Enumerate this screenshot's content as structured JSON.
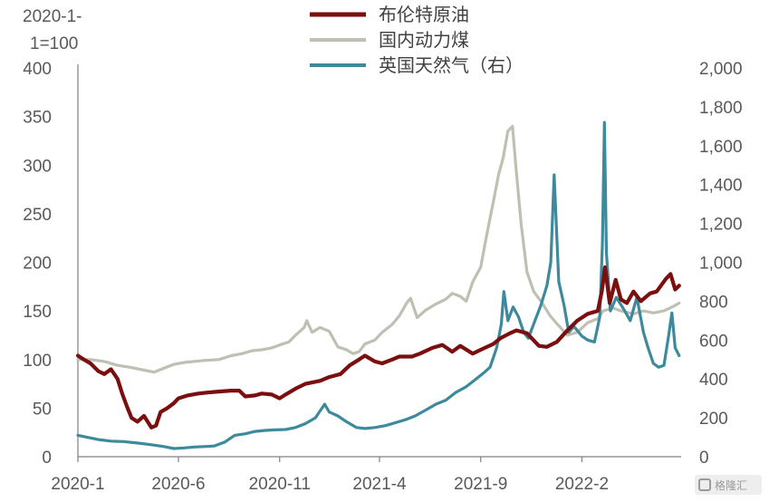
{
  "chart_data": {
    "type": "line",
    "ylabel": "2020-1-1=100",
    "ylabel_lines": [
      "2020-1-",
      "1=100"
    ],
    "x_start": "2020-01",
    "x_end": "2022-07",
    "x_tick_labels": [
      "2020-1",
      "2020-6",
      "2020-11",
      "2021-4",
      "2021-9",
      "2022-2"
    ],
    "x_ticks": [
      "2020-01",
      "2020-06",
      "2020-11",
      "2021-04",
      "2021-09",
      "2022-02"
    ],
    "ylim_left": [
      0,
      400
    ],
    "ylim_right": [
      0,
      2000
    ],
    "y_ticks_left": [
      "0",
      "50",
      "100",
      "150",
      "200",
      "250",
      "300",
      "350",
      "400"
    ],
    "y_ticks_right": [
      "0",
      "200",
      "400",
      "600",
      "800",
      "1,000",
      "1,200",
      "1,400",
      "1,600",
      "1,800",
      "2,000"
    ],
    "grid": false,
    "legend_position": "top-center",
    "series": [
      {
        "name": "布伦特原油",
        "axis": "left",
        "color": "#7B0F0F",
        "points": [
          [
            "2020-01-01",
            104
          ],
          [
            "2020-01-10",
            100
          ],
          [
            "2020-01-20",
            96
          ],
          [
            "2020-02-01",
            88
          ],
          [
            "2020-02-10",
            85
          ],
          [
            "2020-02-20",
            90
          ],
          [
            "2020-03-01",
            80
          ],
          [
            "2020-03-08",
            65
          ],
          [
            "2020-03-15",
            52
          ],
          [
            "2020-03-22",
            40
          ],
          [
            "2020-03-31",
            36
          ],
          [
            "2020-04-10",
            42
          ],
          [
            "2020-04-21",
            30
          ],
          [
            "2020-04-28",
            32
          ],
          [
            "2020-05-05",
            46
          ],
          [
            "2020-05-15",
            50
          ],
          [
            "2020-05-25",
            55
          ],
          [
            "2020-06-01",
            60
          ],
          [
            "2020-06-15",
            63
          ],
          [
            "2020-07-01",
            65
          ],
          [
            "2020-07-15",
            66
          ],
          [
            "2020-08-01",
            67
          ],
          [
            "2020-08-20",
            68
          ],
          [
            "2020-09-01",
            68
          ],
          [
            "2020-09-10",
            62
          ],
          [
            "2020-09-25",
            63
          ],
          [
            "2020-10-05",
            65
          ],
          [
            "2020-10-20",
            64
          ],
          [
            "2020-11-01",
            60
          ],
          [
            "2020-11-10",
            64
          ],
          [
            "2020-11-25",
            70
          ],
          [
            "2020-12-10",
            75
          ],
          [
            "2021-01-01",
            78
          ],
          [
            "2021-01-15",
            82
          ],
          [
            "2021-02-01",
            85
          ],
          [
            "2021-02-15",
            94
          ],
          [
            "2021-03-01",
            100
          ],
          [
            "2021-03-10",
            104
          ],
          [
            "2021-03-25",
            98
          ],
          [
            "2021-04-05",
            96
          ],
          [
            "2021-04-20",
            100
          ],
          [
            "2021-05-01",
            103
          ],
          [
            "2021-05-20",
            103
          ],
          [
            "2021-06-01",
            106
          ],
          [
            "2021-06-20",
            112
          ],
          [
            "2021-07-05",
            115
          ],
          [
            "2021-07-20",
            108
          ],
          [
            "2021-08-01",
            114
          ],
          [
            "2021-08-20",
            106
          ],
          [
            "2021-09-01",
            110
          ],
          [
            "2021-09-20",
            116
          ],
          [
            "2021-10-01",
            122
          ],
          [
            "2021-10-15",
            127
          ],
          [
            "2021-10-25",
            130
          ],
          [
            "2021-11-10",
            127
          ],
          [
            "2021-11-28",
            114
          ],
          [
            "2021-12-10",
            113
          ],
          [
            "2021-12-25",
            118
          ],
          [
            "2022-01-10",
            130
          ],
          [
            "2022-01-25",
            140
          ],
          [
            "2022-02-10",
            147
          ],
          [
            "2022-02-25",
            150
          ],
          [
            "2022-03-03",
            170
          ],
          [
            "2022-03-08",
            195
          ],
          [
            "2022-03-15",
            158
          ],
          [
            "2022-03-24",
            182
          ],
          [
            "2022-04-01",
            162
          ],
          [
            "2022-04-10",
            158
          ],
          [
            "2022-04-20",
            170
          ],
          [
            "2022-05-01",
            160
          ],
          [
            "2022-05-15",
            168
          ],
          [
            "2022-05-25",
            170
          ],
          [
            "2022-06-08",
            183
          ],
          [
            "2022-06-15",
            188
          ],
          [
            "2022-06-22",
            172
          ],
          [
            "2022-06-28",
            176
          ]
        ]
      },
      {
        "name": "国内动力煤",
        "axis": "left",
        "color": "#BFBFB2",
        "points": [
          [
            "2020-01-01",
            100
          ],
          [
            "2020-01-20",
            100
          ],
          [
            "2020-02-10",
            98
          ],
          [
            "2020-03-01",
            94
          ],
          [
            "2020-03-20",
            92
          ],
          [
            "2020-04-10",
            89
          ],
          [
            "2020-04-25",
            87
          ],
          [
            "2020-05-10",
            91
          ],
          [
            "2020-05-25",
            95
          ],
          [
            "2020-06-10",
            97
          ],
          [
            "2020-06-25",
            98
          ],
          [
            "2020-07-10",
            99
          ],
          [
            "2020-08-01",
            100
          ],
          [
            "2020-08-20",
            104
          ],
          [
            "2020-09-05",
            106
          ],
          [
            "2020-09-20",
            109
          ],
          [
            "2020-10-05",
            110
          ],
          [
            "2020-10-20",
            112
          ],
          [
            "2020-11-01",
            115
          ],
          [
            "2020-11-15",
            118
          ],
          [
            "2020-11-25",
            125
          ],
          [
            "2020-12-08",
            133
          ],
          [
            "2020-12-12",
            140
          ],
          [
            "2020-12-20",
            128
          ],
          [
            "2021-01-01",
            133
          ],
          [
            "2021-01-15",
            129
          ],
          [
            "2021-01-28",
            113
          ],
          [
            "2021-02-10",
            110
          ],
          [
            "2021-02-20",
            106
          ],
          [
            "2021-03-01",
            108
          ],
          [
            "2021-03-10",
            116
          ],
          [
            "2021-03-25",
            120
          ],
          [
            "2021-04-05",
            128
          ],
          [
            "2021-04-20",
            136
          ],
          [
            "2021-05-01",
            145
          ],
          [
            "2021-05-12",
            158
          ],
          [
            "2021-05-18",
            163
          ],
          [
            "2021-05-28",
            143
          ],
          [
            "2021-06-10",
            151
          ],
          [
            "2021-06-25",
            157
          ],
          [
            "2021-07-10",
            162
          ],
          [
            "2021-07-20",
            168
          ],
          [
            "2021-08-01",
            165
          ],
          [
            "2021-08-10",
            160
          ],
          [
            "2021-08-20",
            180
          ],
          [
            "2021-09-01",
            195
          ],
          [
            "2021-09-10",
            228
          ],
          [
            "2021-09-20",
            262
          ],
          [
            "2021-09-28",
            290
          ],
          [
            "2021-10-05",
            308
          ],
          [
            "2021-10-12",
            335
          ],
          [
            "2021-10-19",
            340
          ],
          [
            "2021-10-24",
            300
          ],
          [
            "2021-11-01",
            240
          ],
          [
            "2021-11-10",
            190
          ],
          [
            "2021-11-20",
            170
          ],
          [
            "2021-12-01",
            160
          ],
          [
            "2021-12-15",
            145
          ],
          [
            "2021-12-25",
            137
          ],
          [
            "2022-01-10",
            125
          ],
          [
            "2022-01-25",
            128
          ],
          [
            "2022-02-10",
            138
          ],
          [
            "2022-02-25",
            142
          ],
          [
            "2022-03-05",
            150
          ],
          [
            "2022-03-20",
            153
          ],
          [
            "2022-04-01",
            150
          ],
          [
            "2022-04-20",
            147
          ],
          [
            "2022-05-05",
            150
          ],
          [
            "2022-05-20",
            148
          ],
          [
            "2022-06-05",
            150
          ],
          [
            "2022-06-20",
            155
          ],
          [
            "2022-06-28",
            158
          ]
        ]
      },
      {
        "name": "英国天然气（右）",
        "axis": "right",
        "color": "#3C8A9C",
        "points": [
          [
            "2020-01-01",
            110
          ],
          [
            "2020-01-15",
            100
          ],
          [
            "2020-02-01",
            88
          ],
          [
            "2020-02-20",
            80
          ],
          [
            "2020-03-10",
            78
          ],
          [
            "2020-04-01",
            70
          ],
          [
            "2020-04-20",
            62
          ],
          [
            "2020-05-10",
            52
          ],
          [
            "2020-05-25",
            42
          ],
          [
            "2020-06-10",
            45
          ],
          [
            "2020-06-25",
            50
          ],
          [
            "2020-07-10",
            52
          ],
          [
            "2020-07-25",
            55
          ],
          [
            "2020-08-10",
            75
          ],
          [
            "2020-08-25",
            110
          ],
          [
            "2020-09-10",
            118
          ],
          [
            "2020-09-25",
            130
          ],
          [
            "2020-10-10",
            135
          ],
          [
            "2020-10-25",
            138
          ],
          [
            "2020-11-10",
            140
          ],
          [
            "2020-11-25",
            150
          ],
          [
            "2020-12-10",
            170
          ],
          [
            "2020-12-25",
            200
          ],
          [
            "2021-01-08",
            270
          ],
          [
            "2021-01-15",
            230
          ],
          [
            "2021-01-28",
            210
          ],
          [
            "2021-02-10",
            180
          ],
          [
            "2021-02-25",
            150
          ],
          [
            "2021-03-10",
            145
          ],
          [
            "2021-03-25",
            150
          ],
          [
            "2021-04-10",
            160
          ],
          [
            "2021-04-25",
            175
          ],
          [
            "2021-05-10",
            190
          ],
          [
            "2021-05-25",
            210
          ],
          [
            "2021-06-10",
            240
          ],
          [
            "2021-06-25",
            270
          ],
          [
            "2021-07-10",
            290
          ],
          [
            "2021-07-25",
            330
          ],
          [
            "2021-08-10",
            360
          ],
          [
            "2021-08-25",
            400
          ],
          [
            "2021-09-05",
            430
          ],
          [
            "2021-09-15",
            460
          ],
          [
            "2021-09-25",
            560
          ],
          [
            "2021-10-02",
            680
          ],
          [
            "2021-10-06",
            850
          ],
          [
            "2021-10-12",
            700
          ],
          [
            "2021-10-20",
            770
          ],
          [
            "2021-10-28",
            720
          ],
          [
            "2021-11-05",
            640
          ],
          [
            "2021-11-12",
            610
          ],
          [
            "2021-11-22",
            700
          ],
          [
            "2021-12-01",
            780
          ],
          [
            "2021-12-10",
            880
          ],
          [
            "2021-12-16",
            1000
          ],
          [
            "2021-12-21",
            1450
          ],
          [
            "2021-12-28",
            900
          ],
          [
            "2022-01-05",
            780
          ],
          [
            "2022-01-12",
            640
          ],
          [
            "2022-01-20",
            670
          ],
          [
            "2022-02-01",
            620
          ],
          [
            "2022-02-10",
            600
          ],
          [
            "2022-02-20",
            590
          ],
          [
            "2022-02-28",
            720
          ],
          [
            "2022-03-04",
            1100
          ],
          [
            "2022-03-07",
            1720
          ],
          [
            "2022-03-10",
            1050
          ],
          [
            "2022-03-16",
            750
          ],
          [
            "2022-03-25",
            820
          ],
          [
            "2022-04-05",
            760
          ],
          [
            "2022-04-15",
            700
          ],
          [
            "2022-04-25",
            820
          ],
          [
            "2022-05-05",
            640
          ],
          [
            "2022-05-12",
            560
          ],
          [
            "2022-05-20",
            480
          ],
          [
            "2022-05-28",
            460
          ],
          [
            "2022-06-05",
            470
          ],
          [
            "2022-06-12",
            620
          ],
          [
            "2022-06-17",
            740
          ],
          [
            "2022-06-22",
            560
          ],
          [
            "2022-06-28",
            520
          ]
        ]
      }
    ]
  }
}
